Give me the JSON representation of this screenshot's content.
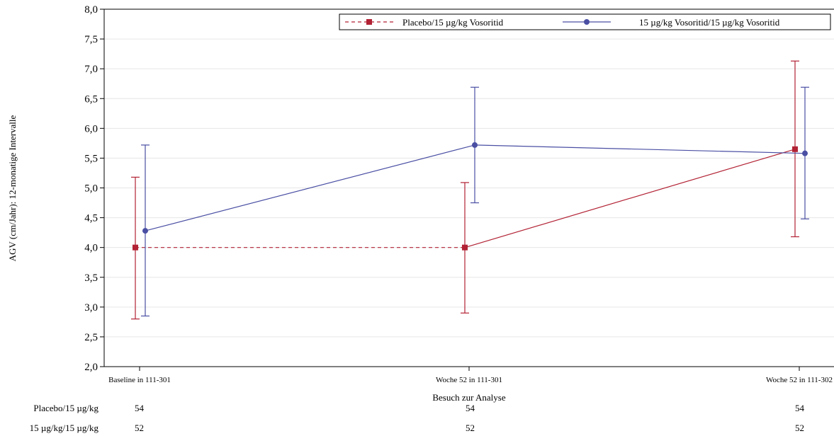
{
  "chart_data": {
    "type": "line",
    "xlabel": "Besuch zur Analyse",
    "ylabel": "AGV (cm/Jahr): 12-monatige Intervalle",
    "ylim": [
      2.0,
      8.0
    ],
    "yticks": [
      "2,0",
      "2,5",
      "3,0",
      "3,5",
      "4,0",
      "4,5",
      "5,0",
      "5,5",
      "6,0",
      "6,5",
      "7,0",
      "7,5",
      "8,0"
    ],
    "grid": true,
    "legend_position": "top-right",
    "categories": [
      "Baseline in 111-301",
      "Woche 52 in 111-301",
      "Woche 52 in 111-302"
    ],
    "series": [
      {
        "name": "Placebo/15 µg/kg Vosoritid",
        "color": "#b22234",
        "marker": "square",
        "values": [
          4.0,
          4.0,
          5.65
        ],
        "lower": [
          2.8,
          2.9,
          4.18
        ],
        "upper": [
          5.18,
          5.09,
          7.13
        ],
        "segment_styles": [
          "dashed",
          "solid"
        ]
      },
      {
        "name": "15 µg/kg Vosoritid/15 µg/kg Vosoritid",
        "color": "#4a4fa3",
        "marker": "circle",
        "values": [
          4.28,
          5.72,
          5.58
        ],
        "lower": [
          2.85,
          4.75,
          4.48
        ],
        "upper": [
          5.72,
          6.69,
          6.69
        ],
        "segment_styles": [
          "solid",
          "solid"
        ]
      }
    ],
    "counts_table": [
      {
        "label": "Placebo/15 µg/kg",
        "values": [
          "54",
          "54",
          "54"
        ]
      },
      {
        "label": "15 µg/kg/15 µg/kg",
        "values": [
          "52",
          "52",
          "52"
        ]
      }
    ]
  }
}
